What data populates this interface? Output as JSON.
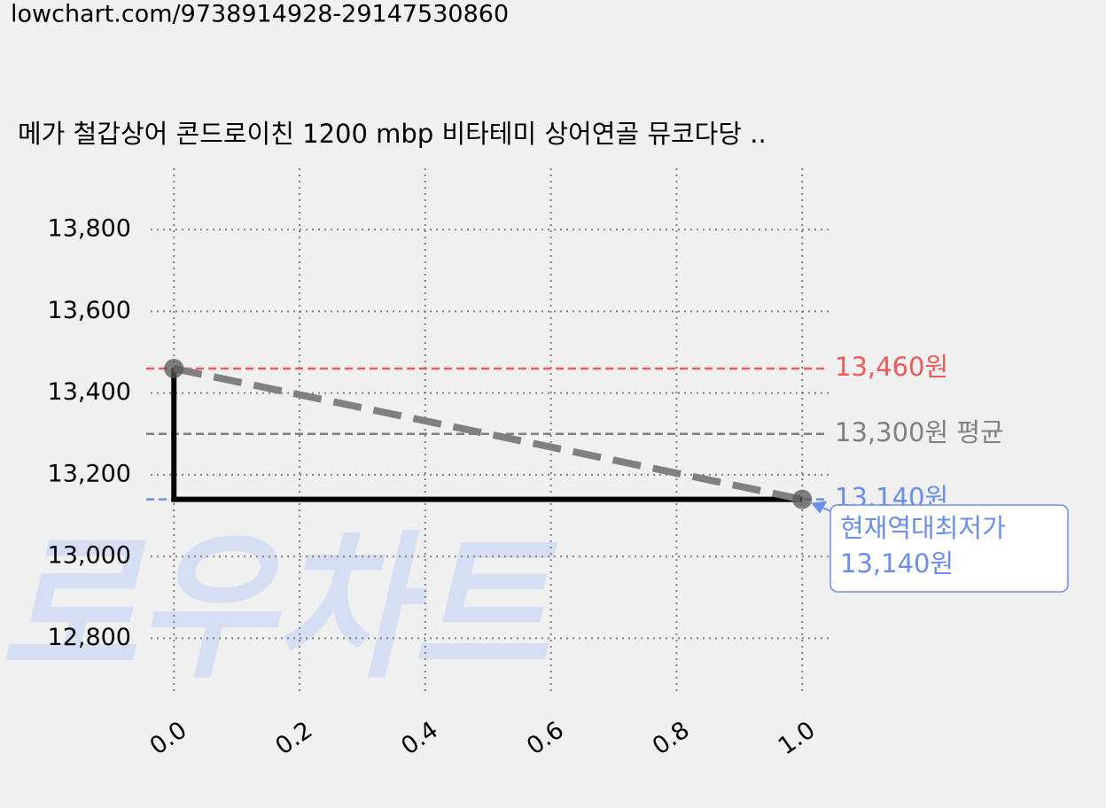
{
  "header": {
    "url": "lowchart.com/9738914928-29147530860"
  },
  "chart_data": {
    "type": "line",
    "title": "메가 철갑상어 콘드로이친 1200 mbp 비타테미 상어연골 뮤코다당 ..",
    "watermark": "로우차트",
    "x": [
      0,
      1
    ],
    "series": [
      {
        "color": "#000000",
        "style": "steps-pre",
        "values": [
          13460,
          13140
        ]
      },
      {
        "color": "#808080",
        "style": "dashed",
        "marker": true,
        "values": [
          13460,
          13140
        ]
      }
    ],
    "hlines": [
      {
        "value": 13460,
        "label": "13,460원",
        "color": "#f05a5a"
      },
      {
        "value": 13300,
        "label": "13,300원 평균",
        "color": "#808080"
      },
      {
        "value": 13140,
        "label": "13,140원",
        "color": "#6a8ef0"
      }
    ],
    "annotation": {
      "x": 1,
      "y": 13140,
      "lines": [
        "현재역대최저가",
        "13,140원"
      ],
      "color": "#6a8ef0"
    },
    "xlim": [
      -0.037,
      1.042
    ],
    "ylim": [
      12660,
      13950
    ],
    "xticks": [
      {
        "value": 0,
        "label": "0.0"
      },
      {
        "value": 0.2,
        "label": "0.2"
      },
      {
        "value": 0.4,
        "label": "0.4"
      },
      {
        "value": 0.6,
        "label": "0.6"
      },
      {
        "value": 0.8,
        "label": "0.8"
      },
      {
        "value": 1,
        "label": "1.0"
      }
    ],
    "yticks": [
      {
        "value": 12800,
        "label": "12,800"
      },
      {
        "value": 13000,
        "label": "13,000"
      },
      {
        "value": 13200,
        "label": "13,200"
      },
      {
        "value": 13400,
        "label": "13,400"
      },
      {
        "value": 13600,
        "label": "13,600"
      },
      {
        "value": 13800,
        "label": "13,800"
      }
    ],
    "grid": true
  }
}
